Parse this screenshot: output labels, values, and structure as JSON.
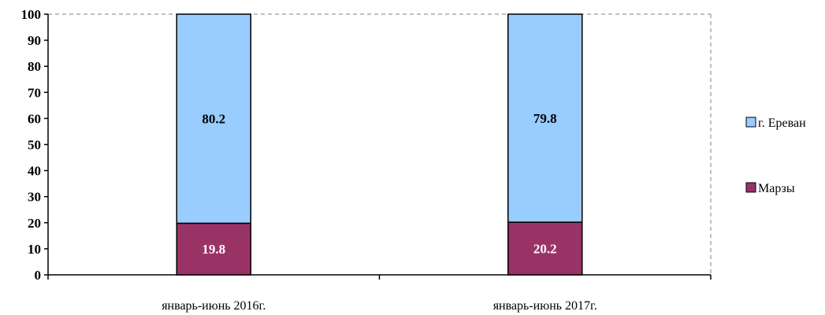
{
  "chart_data": {
    "type": "bar",
    "stacked": true,
    "percent": true,
    "categories": [
      "январь-июнь 2016г.",
      "январь-июнь 2017г."
    ],
    "series": [
      {
        "name": "Марзы",
        "values": [
          19.8,
          20.2
        ],
        "color": "#993366",
        "label_color": "#ffffff"
      },
      {
        "name": "г. Ереван",
        "values": [
          80.2,
          79.8
        ],
        "color": "#99ccff",
        "label_color": "#000000"
      }
    ],
    "legend_order": [
      "г. Ереван",
      "Марзы"
    ],
    "ylim": [
      0,
      100
    ],
    "yticks": [
      0,
      10,
      20,
      30,
      40,
      50,
      60,
      70,
      80,
      90,
      100
    ],
    "legend_position": "right",
    "grid": "dashed top border"
  }
}
